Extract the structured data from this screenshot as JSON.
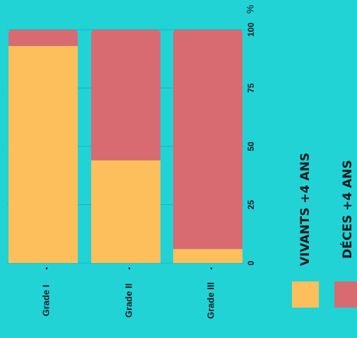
{
  "chart_data": {
    "type": "bar",
    "stacked": true,
    "percent": true,
    "categories": [
      "Grade I",
      "Grade II",
      "Grade III"
    ],
    "series": [
      {
        "name": "VIVANTS +4 ANS",
        "values": [
          93,
          44,
          6
        ],
        "color": "#fdbf5c"
      },
      {
        "name": "DÉCES +4 ANS",
        "values": [
          7,
          56,
          94
        ],
        "color": "#d86a72"
      }
    ],
    "ylim": [
      0,
      100
    ],
    "yticks": [
      "0",
      "25",
      "50",
      "75",
      "100"
    ],
    "yunit": "%",
    "grid": true,
    "legend": "bottom-right"
  },
  "colors": {
    "background": "#22d3d6",
    "gridline": "#1bb3b6",
    "text": "#0a1a1f"
  }
}
